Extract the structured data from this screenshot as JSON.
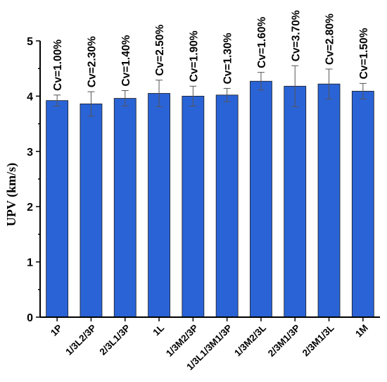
{
  "chart_data": {
    "type": "bar",
    "categories": [
      "1P",
      "1/3L2/3P",
      "2/3L1/3P",
      "1L",
      "1/3M2/3P",
      "1/3L1/3M1/3P",
      "1/3M2/3L",
      "2/3M1/3P",
      "2/3M1/3L",
      "1M"
    ],
    "values": [
      3.92,
      3.86,
      3.96,
      4.05,
      4.0,
      4.02,
      4.27,
      4.18,
      4.22,
      4.09
    ],
    "error": [
      0.1,
      0.22,
      0.14,
      0.24,
      0.18,
      0.12,
      0.16,
      0.37,
      0.27,
      0.14
    ],
    "data_labels": [
      "Cv=1.00%",
      "Cv=2.30%",
      "Cv=1.40%",
      "Cv=2.50%",
      "Cv=1.90%",
      "Cv=1.30%",
      "Cv=1.60%",
      "Cv=3.70%",
      "Cv=2.80%",
      "Cv=1.50%"
    ],
    "title": "",
    "xlabel": "",
    "ylabel": "UPV (km/s)",
    "ylim": [
      0,
      5
    ],
    "yticks": [
      "0",
      "1",
      "2",
      "3",
      "4",
      "5"
    ],
    "bar_color": "#2a63d6",
    "grid": false
  }
}
